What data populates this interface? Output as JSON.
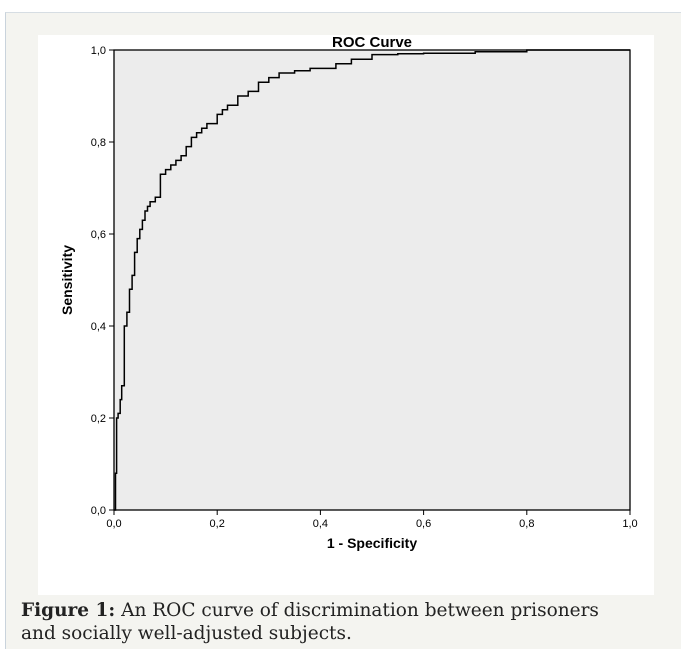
{
  "chart_data": {
    "type": "line",
    "title": "ROC Curve",
    "xlabel": "1 - Specificity",
    "ylabel": "Sensitivity",
    "xlim": [
      0,
      1
    ],
    "ylim": [
      0,
      1
    ],
    "x_ticks": [
      "0,0",
      "0,2",
      "0,4",
      "0,6",
      "0,8",
      "1,0"
    ],
    "y_ticks": [
      "0,0",
      "0,2",
      "0,4",
      "0,6",
      "0,8",
      "1,0"
    ],
    "grid": false,
    "plot_background": "#ececec",
    "line_color": "#000000",
    "series": [
      {
        "x": [
          0,
          0.003,
          0.005,
          0.008,
          0.012,
          0.015,
          0.02,
          0.025,
          0.03,
          0.035,
          0.04,
          0.045,
          0.05,
          0.055,
          0.06,
          0.065,
          0.07,
          0.08,
          0.09,
          0.1,
          0.11,
          0.12,
          0.13,
          0.14,
          0.15,
          0.16,
          0.17,
          0.18,
          0.2,
          0.21,
          0.22,
          0.24,
          0.26,
          0.28,
          0.3,
          0.32,
          0.35,
          0.38,
          0.4,
          0.43,
          0.46,
          0.5,
          0.55,
          0.6,
          0.7,
          0.8,
          0.9,
          1.0
        ],
        "y": [
          0,
          0.08,
          0.2,
          0.21,
          0.24,
          0.27,
          0.4,
          0.43,
          0.48,
          0.51,
          0.56,
          0.59,
          0.61,
          0.63,
          0.65,
          0.66,
          0.67,
          0.68,
          0.73,
          0.74,
          0.75,
          0.76,
          0.77,
          0.79,
          0.81,
          0.82,
          0.83,
          0.84,
          0.86,
          0.87,
          0.88,
          0.9,
          0.91,
          0.93,
          0.94,
          0.95,
          0.955,
          0.96,
          0.96,
          0.97,
          0.98,
          0.99,
          0.992,
          0.993,
          0.996,
          1.0,
          1.0,
          1.0
        ]
      }
    ]
  },
  "caption": {
    "label": "Figure 1:",
    "text": " An ROC curve of discrimination between prisoners and socially well-adjusted subjects."
  }
}
